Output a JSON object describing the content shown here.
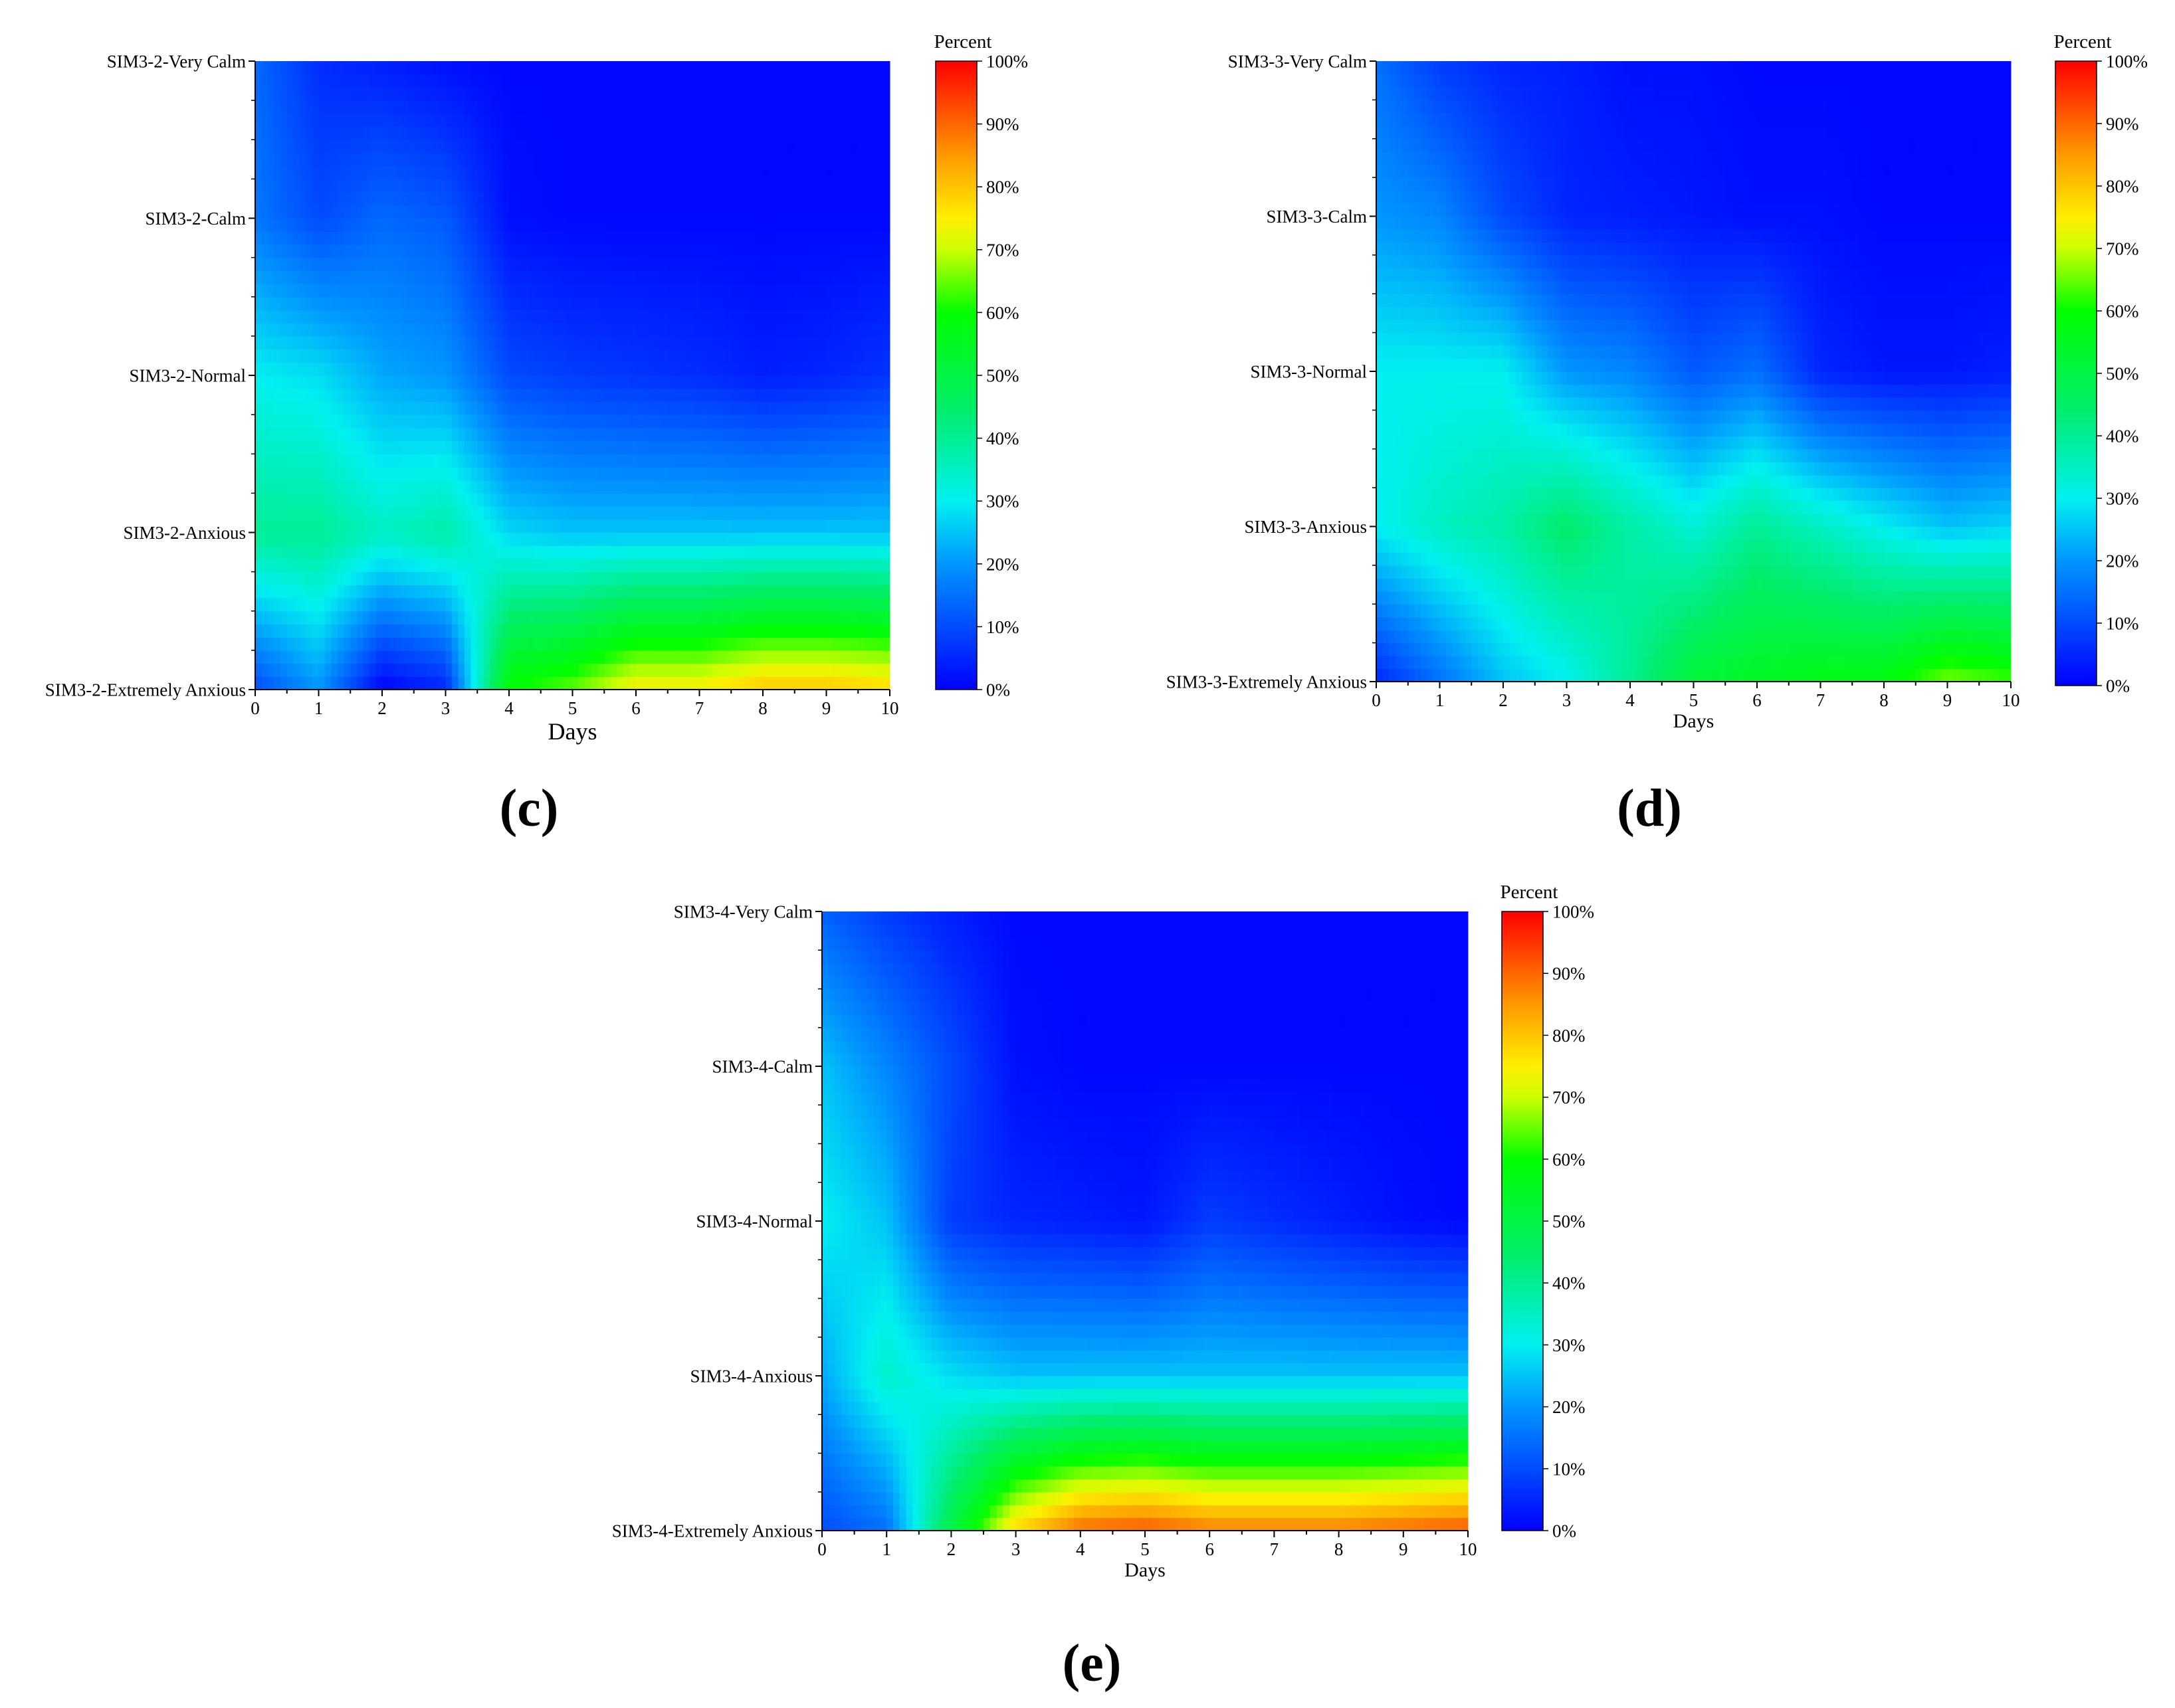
{
  "chart_data": [
    {
      "type": "heatmap",
      "panel_label": "(c)",
      "xlabel": "Days",
      "x": [
        0,
        1,
        2,
        3,
        4,
        5,
        6,
        7,
        8,
        9,
        10
      ],
      "xlim": [
        0,
        10
      ],
      "categories": [
        "SIM3-2-Extremely Anxious",
        "SIM3-2-Anxious",
        "SIM3-2-Normal",
        "SIM3-2-Calm",
        "SIM3-2-Very Calm"
      ],
      "colorbar": {
        "title": "Percent",
        "range": [
          0,
          100
        ],
        "ticks": [
          "0%",
          "10%",
          "20%",
          "30%",
          "40%",
          "50%",
          "60%",
          "70%",
          "80%",
          "90%",
          "100%"
        ]
      },
      "z": [
        [
          10,
          20,
          0,
          5,
          60,
          65,
          75,
          75,
          80,
          80,
          78
        ],
        [
          40,
          40,
          35,
          38,
          27,
          25,
          25,
          25,
          25,
          25,
          25
        ],
        [
          30,
          28,
          22,
          20,
          10,
          8,
          7,
          6,
          4,
          5,
          7
        ],
        [
          16,
          10,
          14,
          12,
          2,
          1,
          1,
          1,
          1,
          1,
          1
        ],
        [
          14,
          6,
          4,
          2,
          1,
          1,
          1,
          1,
          1,
          1,
          1
        ]
      ]
    },
    {
      "type": "heatmap",
      "panel_label": "(d)",
      "xlabel": "Days",
      "x": [
        0,
        1,
        2,
        3,
        4,
        5,
        6,
        7,
        8,
        9,
        10
      ],
      "xlim": [
        0,
        10
      ],
      "categories": [
        "SIM3-3-Extremely Anxious",
        "SIM3-3-Anxious",
        "SIM3-3-Normal",
        "SIM3-3-Calm",
        "SIM3-3-Very Calm"
      ],
      "colorbar": {
        "title": "Percent",
        "range": [
          0,
          100
        ],
        "ticks": [
          "0%",
          "10%",
          "20%",
          "30%",
          "40%",
          "50%",
          "60%",
          "70%",
          "80%",
          "90%",
          "100%"
        ]
      },
      "z": [
        [
          5,
          15,
          25,
          30,
          40,
          52,
          55,
          57,
          58,
          66,
          63
        ],
        [
          30,
          35,
          38,
          45,
          38,
          33,
          40,
          35,
          30,
          25,
          27
        ],
        [
          30,
          30,
          30,
          20,
          18,
          12,
          15,
          5,
          3,
          3,
          4
        ],
        [
          20,
          18,
          10,
          5,
          4,
          3,
          2,
          2,
          1,
          1,
          1
        ],
        [
          15,
          8,
          5,
          4,
          2,
          2,
          1,
          1,
          1,
          1,
          1
        ]
      ]
    },
    {
      "type": "heatmap",
      "panel_label": "(e)",
      "xlabel": "Days",
      "x": [
        0,
        1,
        2,
        3,
        4,
        5,
        6,
        7,
        8,
        9,
        10
      ],
      "xlim": [
        0,
        10
      ],
      "categories": [
        "SIM3-4-Extremely Anxious",
        "SIM3-4-Anxious",
        "SIM3-4-Normal",
        "SIM3-4-Calm",
        "SIM3-4-Very Calm"
      ],
      "colorbar": {
        "title": "Percent",
        "range": [
          0,
          100
        ],
        "ticks": [
          "0%",
          "10%",
          "20%",
          "30%",
          "40%",
          "50%",
          "60%",
          "70%",
          "80%",
          "90%",
          "100%"
        ]
      },
      "z": [
        [
          10,
          15,
          50,
          78,
          90,
          92,
          88,
          88,
          88,
          90,
          92
        ],
        [
          22,
          34,
          28,
          25,
          25,
          25,
          25,
          25,
          25,
          25,
          25
        ],
        [
          30,
          25,
          8,
          5,
          4,
          3,
          8,
          6,
          4,
          2,
          1
        ],
        [
          25,
          18,
          10,
          2,
          1,
          1,
          1,
          1,
          1,
          1,
          1
        ],
        [
          13,
          8,
          4,
          1,
          1,
          1,
          1,
          1,
          1,
          1,
          1
        ]
      ]
    }
  ]
}
